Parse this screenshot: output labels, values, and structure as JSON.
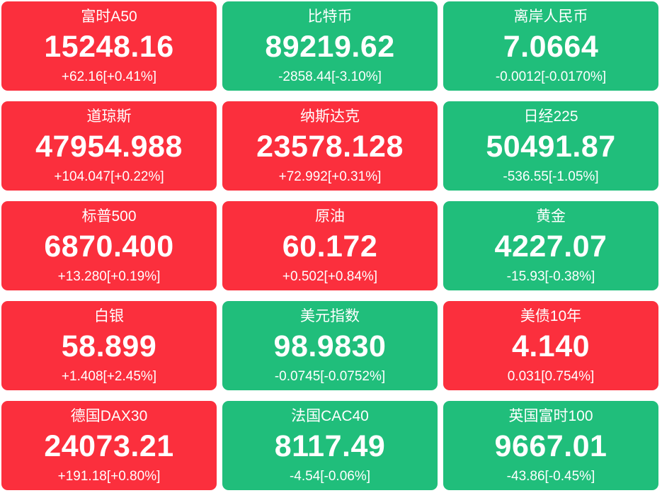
{
  "colors": {
    "up": "#fb2f3d",
    "down": "#20be7b",
    "text": "#ffffff",
    "background": "#ffffff"
  },
  "board": {
    "columns": 3,
    "rows": 5
  },
  "tiles": [
    {
      "name": "富时A50",
      "value": "15248.16",
      "change": "+62.16[+0.41%]",
      "direction": "up"
    },
    {
      "name": "比特币",
      "value": "89219.62",
      "change": "-2858.44[-3.10%]",
      "direction": "down"
    },
    {
      "name": "离岸人民币",
      "value": "7.0664",
      "change": "-0.0012[-0.0170%]",
      "direction": "down"
    },
    {
      "name": "道琼斯",
      "value": "47954.988",
      "change": "+104.047[+0.22%]",
      "direction": "up"
    },
    {
      "name": "纳斯达克",
      "value": "23578.128",
      "change": "+72.992[+0.31%]",
      "direction": "up"
    },
    {
      "name": "日经225",
      "value": "50491.87",
      "change": "-536.55[-1.05%]",
      "direction": "down"
    },
    {
      "name": "标普500",
      "value": "6870.400",
      "change": "+13.280[+0.19%]",
      "direction": "up"
    },
    {
      "name": "原油",
      "value": "60.172",
      "change": "+0.502[+0.84%]",
      "direction": "up"
    },
    {
      "name": "黄金",
      "value": "4227.07",
      "change": "-15.93[-0.38%]",
      "direction": "down"
    },
    {
      "name": "白银",
      "value": "58.899",
      "change": "+1.408[+2.45%]",
      "direction": "up"
    },
    {
      "name": "美元指数",
      "value": "98.9830",
      "change": "-0.0745[-0.0752%]",
      "direction": "down"
    },
    {
      "name": "美债10年",
      "value": "4.140",
      "change": "0.031[0.754%]",
      "direction": "up"
    },
    {
      "name": "德国DAX30",
      "value": "24073.21",
      "change": "+191.18[+0.80%]",
      "direction": "up"
    },
    {
      "name": "法国CAC40",
      "value": "8117.49",
      "change": "-4.54[-0.06%]",
      "direction": "down"
    },
    {
      "name": "英国富时100",
      "value": "9667.01",
      "change": "-43.86[-0.45%]",
      "direction": "down"
    }
  ]
}
